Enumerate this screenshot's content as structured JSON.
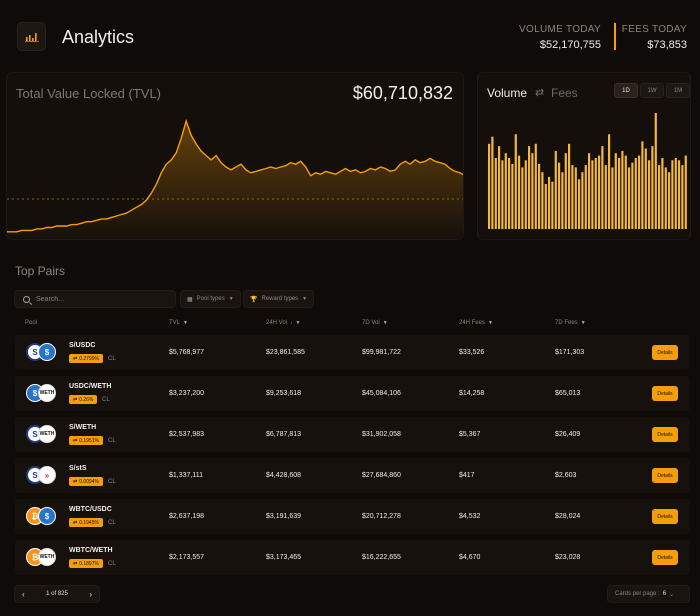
{
  "header": {
    "title": "Analytics",
    "logo_icon": "chart-bars-icon",
    "volume_today_label": "VOLUME TODAY",
    "volume_today_value": "$52,170,755",
    "fees_today_label": "FEES TODAY",
    "fees_today_value": "$73,853"
  },
  "tvl": {
    "title": "Total Value Locked (TVL)",
    "value": "$60,710,832",
    "accent": "#f59e0b",
    "series": [
      5,
      5,
      5,
      6,
      6,
      6,
      7,
      7,
      8,
      8,
      9,
      9,
      9,
      10,
      10,
      11,
      12,
      12,
      13,
      14,
      14,
      15,
      16,
      17,
      18,
      20,
      22,
      24,
      27,
      32,
      38,
      46,
      52,
      55,
      60,
      70,
      82,
      72,
      66,
      61,
      58,
      55,
      58,
      53,
      50,
      48,
      50,
      52,
      48,
      46,
      47,
      48,
      49,
      50,
      49,
      50,
      51,
      53,
      52,
      54,
      50,
      44,
      46,
      45,
      47,
      46,
      45,
      47,
      49,
      47,
      48,
      46,
      47,
      49,
      48,
      50,
      49,
      47,
      48,
      52,
      54,
      52,
      55,
      53,
      54,
      56,
      54,
      53,
      52,
      49,
      47,
      46,
      44
    ]
  },
  "volume": {
    "tab_volume": "Volume",
    "tab_fees": "Fees",
    "ranges": [
      "1D",
      "1W",
      "1M"
    ],
    "active_range": "1D",
    "bars": [
      72,
      78,
      60,
      70,
      58,
      64,
      60,
      55,
      80,
      62,
      52,
      58,
      70,
      64,
      72,
      55,
      48,
      38,
      44,
      40,
      66,
      56,
      48,
      64,
      72,
      54,
      52,
      42,
      48,
      54,
      64,
      58,
      60,
      62,
      70,
      54,
      80,
      52,
      64,
      60,
      66,
      62,
      52,
      56,
      60,
      62,
      74,
      68,
      58,
      70,
      98,
      54,
      60,
      52,
      48,
      58,
      60,
      58,
      54,
      62
    ]
  },
  "pairs": {
    "title": "Top Pairs",
    "search_placeholder": "Search...",
    "filter_pool_types": "Pool types",
    "filter_reward_types": "Reward types",
    "columns": {
      "pool": "Pool",
      "tvl": "TVL",
      "vol24": "24H Vol",
      "vol7": "7D Vol",
      "fees24": "24H Fees",
      "fees7": "7D Fees"
    },
    "details_label": "Details",
    "cl_label": "CL",
    "rows": [
      {
        "name": "S/USDC",
        "fee": "0.2799%",
        "tvl": "$5,768,977",
        "vol24": "$23,861,585",
        "vol7": "$99,981,722",
        "fees24": "$33,526",
        "fees7": "$171,303",
        "tok_a": "S",
        "tok_b": "$"
      },
      {
        "name": "USDC/WETH",
        "fee": "0.26%",
        "tvl": "$3,237,200",
        "vol24": "$9,253,618",
        "vol7": "$45,084,106",
        "fees24": "$14,258",
        "fees7": "$65,013",
        "tok_a": "$",
        "tok_b": "WETH"
      },
      {
        "name": "S/WETH",
        "fee": "0.1951%",
        "tvl": "$2,537,983",
        "vol24": "$6,787,813",
        "vol7": "$31,902,058",
        "fees24": "$5,367",
        "fees7": "$26,409",
        "tok_a": "S",
        "tok_b": "WETH"
      },
      {
        "name": "S/stS",
        "fee": "0.0094%",
        "tvl": "$1,337,111",
        "vol24": "$4,428,608",
        "vol7": "$27,684,860",
        "fees24": "$417",
        "fees7": "$2,603",
        "tok_a": "S",
        "tok_b": "»"
      },
      {
        "name": "WBTC/USDC",
        "fee": "0.1945%",
        "tvl": "$2,637,198",
        "vol24": "$3,191,639",
        "vol7": "$20,712,278",
        "fees24": "$4,532",
        "fees7": "$28,024",
        "tok_a": "₿",
        "tok_b": "$"
      },
      {
        "name": "WBTC/WETH",
        "fee": "0.1897%",
        "tvl": "$2,173,557",
        "vol24": "$3,173,465",
        "vol7": "$16,222,655",
        "fees24": "$4,670",
        "fees7": "$23,028",
        "tok_a": "₿",
        "tok_b": "WETH"
      }
    ]
  },
  "pagination": {
    "page_text": "1 of 825",
    "cards_per_page_label": "Cards per page :",
    "cards_per_page_value": "6"
  }
}
